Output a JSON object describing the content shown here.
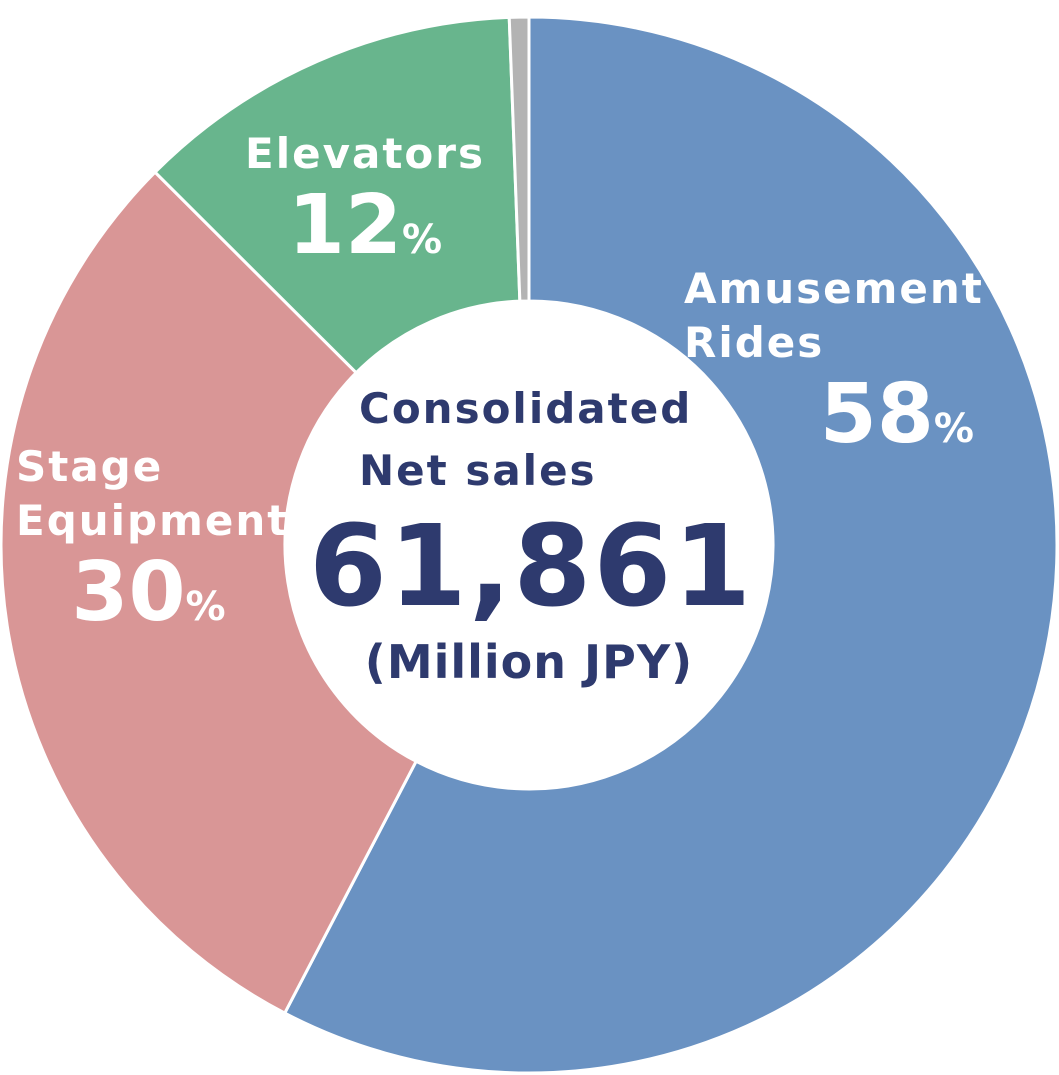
{
  "chart_data": {
    "type": "donut",
    "categories": [
      "Amusement Rides",
      "Stage Equipment",
      "Elevators",
      null
    ],
    "values": [
      58,
      30,
      12,
      0.6
    ],
    "value_labels": [
      "58%",
      "30%",
      "12%",
      null
    ],
    "colors": [
      "#6a92c2",
      "#d99696",
      "#68b58d",
      "#b3b3b3"
    ],
    "center": {
      "title": "Consolidated Net sales",
      "total": "61,861",
      "unit": "(Million JPY)"
    }
  }
}
